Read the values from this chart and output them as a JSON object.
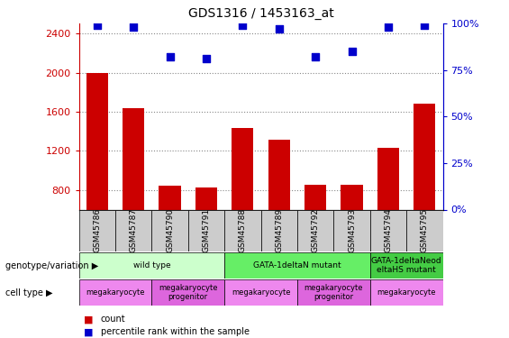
{
  "title": "GDS1316 / 1453163_at",
  "samples": [
    "GSM45786",
    "GSM45787",
    "GSM45790",
    "GSM45791",
    "GSM45788",
    "GSM45789",
    "GSM45792",
    "GSM45793",
    "GSM45794",
    "GSM45795"
  ],
  "counts": [
    2000,
    1640,
    840,
    830,
    1430,
    1310,
    855,
    855,
    1230,
    1680
  ],
  "percentiles": [
    99,
    98,
    82,
    81,
    99,
    97,
    82,
    85,
    98,
    99
  ],
  "ylim_left": [
    600,
    2500
  ],
  "ylim_right": [
    0,
    100
  ],
  "yticks_left": [
    800,
    1200,
    1600,
    2000,
    2400
  ],
  "yticks_right": [
    0,
    25,
    50,
    75,
    100
  ],
  "bar_color": "#cc0000",
  "dot_color": "#0000cc",
  "genotype_groups": [
    {
      "label": "wild type",
      "start": 0,
      "end": 4,
      "color": "#ccffcc"
    },
    {
      "label": "GATA-1deltaN mutant",
      "start": 4,
      "end": 8,
      "color": "#66ee66"
    },
    {
      "label": "GATA-1deltaNeod\neltaHS mutant",
      "start": 8,
      "end": 10,
      "color": "#44cc44"
    }
  ],
  "cell_type_groups": [
    {
      "label": "megakaryocyte",
      "start": 0,
      "end": 2,
      "color": "#ee88ee"
    },
    {
      "label": "megakaryocyte\nprogenitor",
      "start": 2,
      "end": 4,
      "color": "#dd66dd"
    },
    {
      "label": "megakaryocyte",
      "start": 4,
      "end": 6,
      "color": "#ee88ee"
    },
    {
      "label": "megakaryocyte\nprogenitor",
      "start": 6,
      "end": 8,
      "color": "#dd66dd"
    },
    {
      "label": "megakaryocyte",
      "start": 8,
      "end": 10,
      "color": "#ee88ee"
    }
  ],
  "grid_color": "#888888",
  "tick_color_left": "#cc0000",
  "tick_color_right": "#0000cc",
  "sample_box_color": "#cccccc",
  "fig_width": 5.65,
  "fig_height": 3.75,
  "dpi": 100
}
